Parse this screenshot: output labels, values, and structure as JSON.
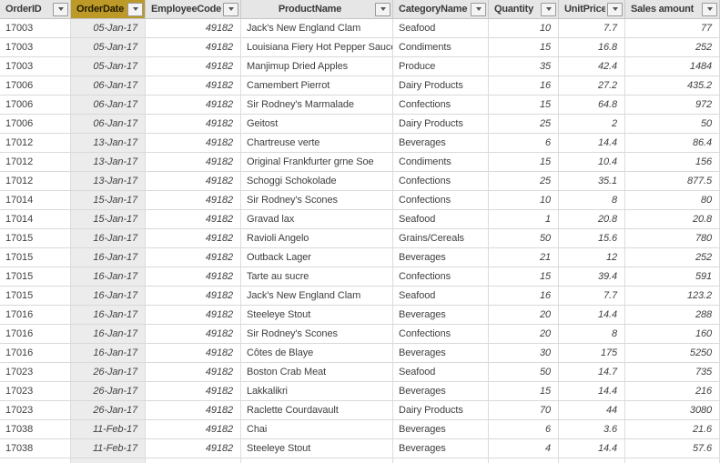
{
  "table": {
    "columns": [
      {
        "name": "orderid",
        "label": "OrderID",
        "align": "left",
        "header_align": "left",
        "italic": false,
        "selected": false
      },
      {
        "name": "orderdate",
        "label": "OrderDate",
        "align": "right",
        "header_align": "left",
        "italic": true,
        "selected": true
      },
      {
        "name": "employeecode",
        "label": "EmployeeCode",
        "align": "right",
        "header_align": "left",
        "italic": true,
        "selected": false
      },
      {
        "name": "productname",
        "label": "ProductName",
        "align": "left",
        "header_align": "center",
        "italic": false,
        "selected": false
      },
      {
        "name": "categoryname",
        "label": "CategoryName",
        "align": "left",
        "header_align": "left",
        "italic": false,
        "selected": false
      },
      {
        "name": "quantity",
        "label": "Quantity",
        "align": "right",
        "header_align": "left",
        "italic": true,
        "selected": false
      },
      {
        "name": "unitprice",
        "label": "UnitPrice",
        "align": "right",
        "header_align": "left",
        "italic": true,
        "selected": false
      },
      {
        "name": "sales-amount",
        "label": "Sales amount",
        "align": "right",
        "header_align": "left",
        "italic": true,
        "selected": false
      }
    ],
    "rows": [
      [
        "17003",
        "05-Jan-17",
        "49182",
        "Jack's New England Clam",
        "Seafood",
        "10",
        "7.7",
        "77"
      ],
      [
        "17003",
        "05-Jan-17",
        "49182",
        "Louisiana Fiery Hot Pepper Sauce",
        "Condiments",
        "15",
        "16.8",
        "252"
      ],
      [
        "17003",
        "05-Jan-17",
        "49182",
        "Manjimup Dried Apples",
        "Produce",
        "35",
        "42.4",
        "1484"
      ],
      [
        "17006",
        "06-Jan-17",
        "49182",
        "Camembert Pierrot",
        "Dairy Products",
        "16",
        "27.2",
        "435.2"
      ],
      [
        "17006",
        "06-Jan-17",
        "49182",
        "Sir Rodney's Marmalade",
        "Confections",
        "15",
        "64.8",
        "972"
      ],
      [
        "17006",
        "06-Jan-17",
        "49182",
        "Geitost",
        "Dairy Products",
        "25",
        "2",
        "50"
      ],
      [
        "17012",
        "13-Jan-17",
        "49182",
        "Chartreuse verte",
        "Beverages",
        "6",
        "14.4",
        "86.4"
      ],
      [
        "17012",
        "13-Jan-17",
        "49182",
        "Original Frankfurter grne Soe",
        "Condiments",
        "15",
        "10.4",
        "156"
      ],
      [
        "17012",
        "13-Jan-17",
        "49182",
        "Schoggi Schokolade",
        "Confections",
        "25",
        "35.1",
        "877.5"
      ],
      [
        "17014",
        "15-Jan-17",
        "49182",
        "Sir Rodney's Scones",
        "Confections",
        "10",
        "8",
        "80"
      ],
      [
        "17014",
        "15-Jan-17",
        "49182",
        "Gravad lax",
        "Seafood",
        "1",
        "20.8",
        "20.8"
      ],
      [
        "17015",
        "16-Jan-17",
        "49182",
        "Ravioli Angelo",
        "Grains/Cereals",
        "50",
        "15.6",
        "780"
      ],
      [
        "17015",
        "16-Jan-17",
        "49182",
        "Outback Lager",
        "Beverages",
        "21",
        "12",
        "252"
      ],
      [
        "17015",
        "16-Jan-17",
        "49182",
        "Tarte au sucre",
        "Confections",
        "15",
        "39.4",
        "591"
      ],
      [
        "17015",
        "16-Jan-17",
        "49182",
        "Jack's New England Clam",
        "Seafood",
        "16",
        "7.7",
        "123.2"
      ],
      [
        "17016",
        "16-Jan-17",
        "49182",
        "Steeleye Stout",
        "Beverages",
        "20",
        "14.4",
        "288"
      ],
      [
        "17016",
        "16-Jan-17",
        "49182",
        "Sir Rodney's Scones",
        "Confections",
        "20",
        "8",
        "160"
      ],
      [
        "17016",
        "16-Jan-17",
        "49182",
        "Côtes de Blaye",
        "Beverages",
        "30",
        "175",
        "5250"
      ],
      [
        "17023",
        "26-Jan-17",
        "49182",
        "Boston Crab Meat",
        "Seafood",
        "50",
        "14.7",
        "735"
      ],
      [
        "17023",
        "26-Jan-17",
        "49182",
        "Lakkalikri",
        "Beverages",
        "15",
        "14.4",
        "216"
      ],
      [
        "17023",
        "26-Jan-17",
        "49182",
        "Raclette Courdavault",
        "Dairy Products",
        "70",
        "44",
        "3080"
      ],
      [
        "17038",
        "11-Feb-17",
        "49182",
        "Chai",
        "Beverages",
        "6",
        "3.6",
        "21.6"
      ],
      [
        "17038",
        "11-Feb-17",
        "49182",
        "Steeleye Stout",
        "Beverages",
        "4",
        "14.4",
        "57.6"
      ]
    ]
  },
  "icons": {
    "filter_dropdown": "chevron-down-icon"
  },
  "colors": {
    "selected_header_bg": "#BD9A27",
    "header_bg": "#E6E6E6",
    "selected_column_bg": "#ECECEC",
    "grid_border": "#DCDCDC",
    "row_border": "#D9D9D9",
    "text": "#3F3F3F",
    "header_text": "#3B3A39"
  }
}
